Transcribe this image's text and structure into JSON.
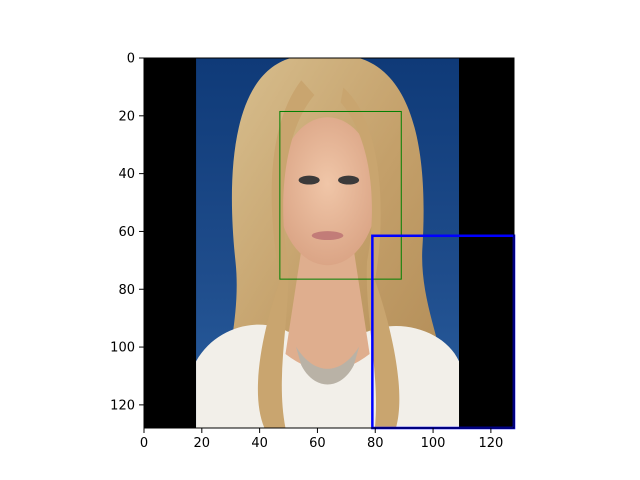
{
  "chart_data": {
    "type": "image",
    "title": "",
    "xlabel": "",
    "ylabel": "",
    "xlim": [
      0,
      128
    ],
    "ylim": [
      128,
      0
    ],
    "y_inverted": true,
    "grid": false,
    "legend": "none",
    "x_ticks": [
      0,
      20,
      40,
      60,
      80,
      100,
      120
    ],
    "y_ticks": [
      0,
      20,
      40,
      60,
      80,
      100,
      120
    ],
    "image": {
      "description_icon": "portrait-photo",
      "extent": {
        "x0": 18,
        "x1": 109,
        "y0": 0,
        "y1": 128
      },
      "padding_color": "#000000"
    },
    "boxes": [
      {
        "name": "green-box",
        "color": "#008000",
        "x0": 47,
        "y0": 18.5,
        "x1": 89,
        "y1": 76.5,
        "stroke": 1
      },
      {
        "name": "blue-box",
        "color": "#0000ff",
        "x0": 79,
        "y0": 61.5,
        "x1": 128,
        "y1": 128,
        "stroke": 2.5
      }
    ]
  }
}
